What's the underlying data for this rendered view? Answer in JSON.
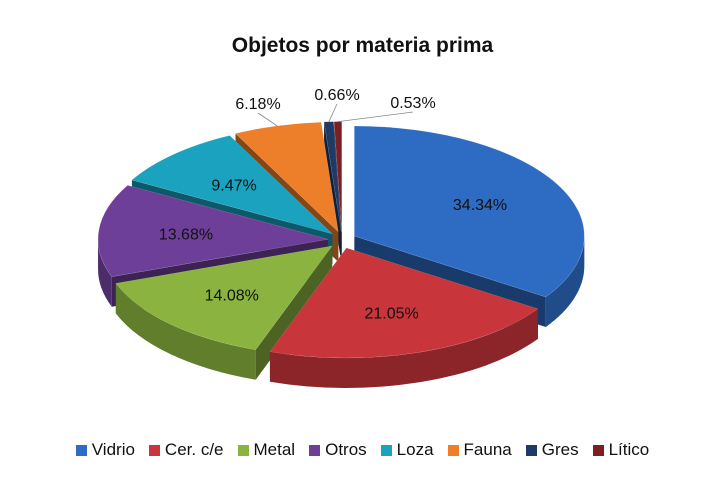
{
  "chart_data": {
    "type": "pie",
    "title": "Objetos por materia prima",
    "categories": [
      "Vidrio",
      "Cer. c/e",
      "Metal",
      "Otros",
      "Loza",
      "Fauna",
      "Gres",
      "Lítico"
    ],
    "values": [
      34.34,
      21.05,
      14.08,
      13.68,
      9.47,
      6.18,
      0.66,
      0.53
    ],
    "labels": [
      "34.34%",
      "21.05%",
      "14.08%",
      "13.68%",
      "9.47%",
      "6.18%",
      "0.66%",
      "0.53%"
    ],
    "colors": [
      "#2e6cc4",
      "#c8353a",
      "#8ab43f",
      "#6e3f98",
      "#1aa2bf",
      "#ee7f2a",
      "#1f3a66",
      "#7b1f22"
    ],
    "legend_position": "bottom",
    "style": "3d-exploded"
  }
}
